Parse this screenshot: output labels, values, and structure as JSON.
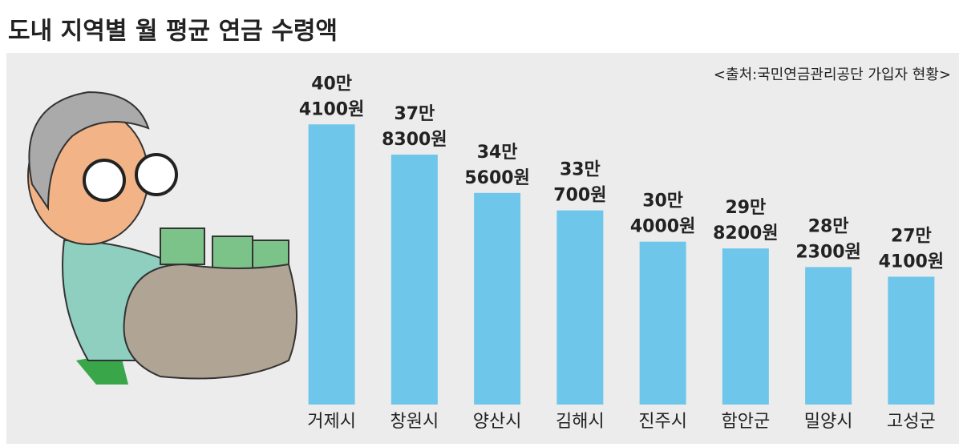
{
  "chart_data": {
    "type": "bar",
    "title": "도내 지역별 월 평균 연금 수령액",
    "source": "<출처:국민연금관리공단 가입자 현황>",
    "categories": [
      "거제시",
      "창원시",
      "양산시",
      "김해시",
      "진주시",
      "함안군",
      "밀양시",
      "고성군"
    ],
    "values": [
      404100,
      378300,
      345600,
      330700,
      304000,
      298200,
      282300,
      274100
    ],
    "value_labels": [
      [
        "40만",
        "4100원"
      ],
      [
        "37만",
        "8300원"
      ],
      [
        "34만",
        "5600원"
      ],
      [
        "33만",
        "700원"
      ],
      [
        "30만",
        "4000원"
      ],
      [
        "29만",
        "8200원"
      ],
      [
        "28만",
        "2300원"
      ],
      [
        "27만",
        "4100원"
      ]
    ],
    "color": "#6ec6ea",
    "ylim": [
      165000,
      420000
    ]
  }
}
